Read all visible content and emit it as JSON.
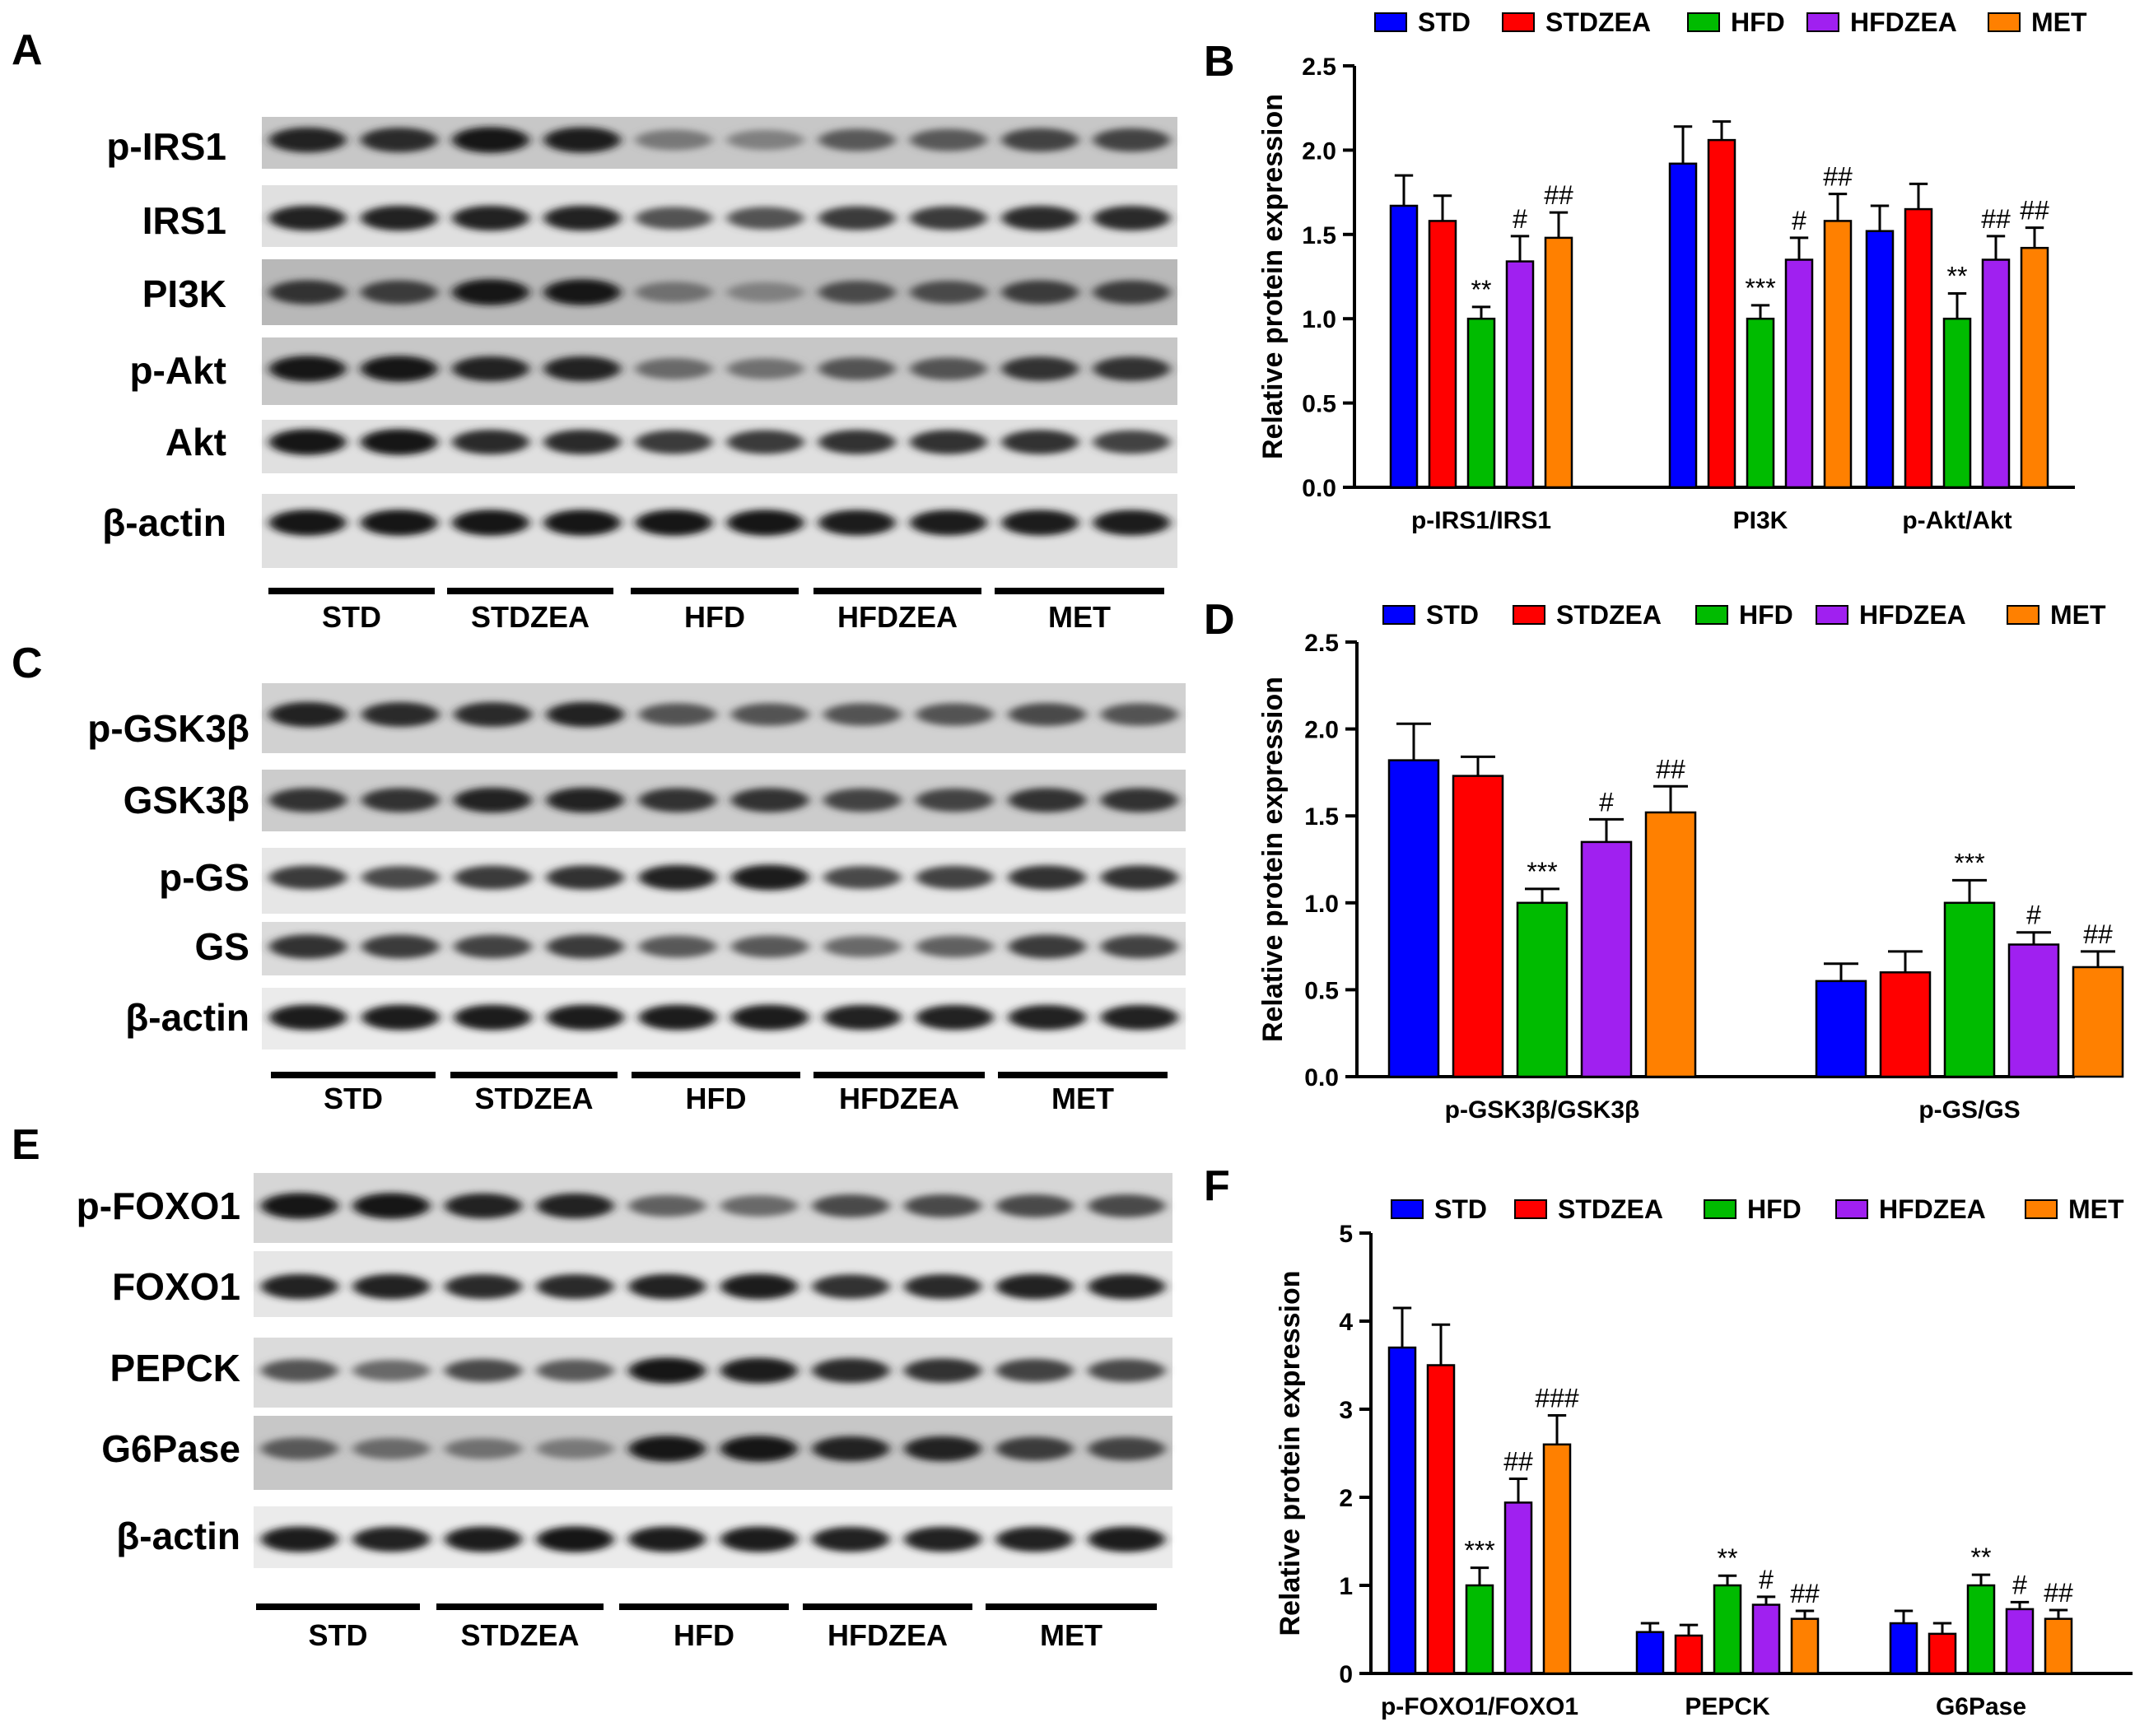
{
  "colors": {
    "STD": "#0000ff",
    "STDZEA": "#ff0000",
    "HFD": "#00bb00",
    "HFDZEA": "#a020f0",
    "MET": "#ff8000"
  },
  "groups": [
    "STD",
    "STDZEA",
    "HFD",
    "HFDZEA",
    "MET"
  ],
  "panels": {
    "A": {
      "letter": "A",
      "rows": [
        {
          "name": "p-IRS1",
          "bands": [
            0.85,
            0.8,
            0.95,
            0.9,
            0.3,
            0.25,
            0.5,
            0.5,
            0.65,
            0.65
          ],
          "bg": 0.78
        },
        {
          "name": "IRS1",
          "bands": [
            0.85,
            0.85,
            0.85,
            0.85,
            0.55,
            0.55,
            0.7,
            0.7,
            0.8,
            0.8
          ],
          "bg": 0.88
        },
        {
          "name": "PI3K",
          "bands": [
            0.75,
            0.7,
            0.95,
            0.95,
            0.35,
            0.25,
            0.6,
            0.6,
            0.7,
            0.7
          ],
          "bg": 0.72
        },
        {
          "name": "p-Akt",
          "bands": [
            0.95,
            0.95,
            0.85,
            0.85,
            0.4,
            0.35,
            0.55,
            0.55,
            0.75,
            0.75
          ],
          "bg": 0.78
        },
        {
          "name": "Akt",
          "bands": [
            0.95,
            0.95,
            0.8,
            0.8,
            0.7,
            0.7,
            0.75,
            0.75,
            0.75,
            0.65
          ],
          "bg": 0.88
        },
        {
          "name": "β-actin",
          "bands": [
            0.95,
            0.95,
            0.95,
            0.95,
            0.95,
            0.95,
            0.9,
            0.9,
            0.9,
            0.9
          ],
          "bg": 0.88
        }
      ]
    },
    "B": {
      "letter": "B",
      "ylabel": "Relative protein expression",
      "chart_data": {
        "type": "bar",
        "categories": [
          "p-IRS1/IRS1",
          "PI3K",
          "p-Akt/Akt"
        ],
        "ylim": [
          0,
          2.5
        ],
        "yticks": [
          "0.0",
          "0.5",
          "1.0",
          "1.5",
          "2.0",
          "2.5"
        ],
        "series": [
          {
            "name": "STD",
            "values": [
              1.67,
              1.92,
              1.52
            ],
            "errors": [
              0.18,
              0.22,
              0.15
            ]
          },
          {
            "name": "STDZEA",
            "values": [
              1.58,
              2.06,
              1.65
            ],
            "errors": [
              0.15,
              0.11,
              0.15
            ]
          },
          {
            "name": "HFD",
            "values": [
              1.0,
              1.0,
              1.0
            ],
            "errors": [
              0.07,
              0.08,
              0.15
            ]
          },
          {
            "name": "HFDZEA",
            "values": [
              1.34,
              1.35,
              1.35
            ],
            "errors": [
              0.15,
              0.13,
              0.14
            ]
          },
          {
            "name": "MET",
            "values": [
              1.48,
              1.58,
              1.42
            ],
            "errors": [
              0.15,
              0.16,
              0.12
            ]
          }
        ],
        "annotations": [
          {
            "cat": 0,
            "series": 2,
            "text": "**"
          },
          {
            "cat": 0,
            "series": 3,
            "text": "#"
          },
          {
            "cat": 0,
            "series": 4,
            "text": "##"
          },
          {
            "cat": 1,
            "series": 2,
            "text": "***"
          },
          {
            "cat": 1,
            "series": 3,
            "text": "#"
          },
          {
            "cat": 1,
            "series": 4,
            "text": "##"
          },
          {
            "cat": 2,
            "series": 2,
            "text": "**"
          },
          {
            "cat": 2,
            "series": 3,
            "text": "##"
          },
          {
            "cat": 2,
            "series": 4,
            "text": "##"
          }
        ]
      }
    },
    "C": {
      "letter": "C",
      "rows": [
        {
          "name": "p-GSK3β",
          "bands": [
            0.85,
            0.8,
            0.8,
            0.85,
            0.55,
            0.55,
            0.55,
            0.55,
            0.6,
            0.55
          ],
          "bg": 0.82
        },
        {
          "name": "GSK3β",
          "bands": [
            0.75,
            0.75,
            0.85,
            0.85,
            0.75,
            0.75,
            0.65,
            0.65,
            0.75,
            0.75
          ],
          "bg": 0.8
        },
        {
          "name": "p-GS",
          "bands": [
            0.7,
            0.6,
            0.7,
            0.75,
            0.85,
            0.9,
            0.6,
            0.65,
            0.75,
            0.75
          ],
          "bg": 0.9
        },
        {
          "name": "GS",
          "bands": [
            0.75,
            0.7,
            0.65,
            0.7,
            0.5,
            0.5,
            0.4,
            0.45,
            0.7,
            0.65
          ],
          "bg": 0.86
        },
        {
          "name": "β-actin",
          "bands": [
            0.9,
            0.9,
            0.9,
            0.9,
            0.9,
            0.9,
            0.85,
            0.85,
            0.85,
            0.85
          ],
          "bg": 0.92
        }
      ]
    },
    "D": {
      "letter": "D",
      "ylabel": "Relative protein expression",
      "chart_data": {
        "type": "bar",
        "categories": [
          "p-GSK3β/GSK3β",
          "p-GS/GS"
        ],
        "ylim": [
          0,
          2.5
        ],
        "yticks": [
          "0.0",
          "0.5",
          "1.0",
          "1.5",
          "2.0",
          "2.5"
        ],
        "series": [
          {
            "name": "STD",
            "values": [
              1.82,
              0.55
            ],
            "errors": [
              0.21,
              0.1
            ]
          },
          {
            "name": "STDZEA",
            "values": [
              1.73,
              0.6
            ],
            "errors": [
              0.11,
              0.12
            ]
          },
          {
            "name": "HFD",
            "values": [
              1.0,
              1.0
            ],
            "errors": [
              0.08,
              0.13
            ]
          },
          {
            "name": "HFDZEA",
            "values": [
              1.35,
              0.76
            ],
            "errors": [
              0.13,
              0.07
            ]
          },
          {
            "name": "MET",
            "values": [
              1.52,
              0.63
            ],
            "errors": [
              0.15,
              0.09
            ]
          }
        ],
        "annotations": [
          {
            "cat": 0,
            "series": 2,
            "text": "***"
          },
          {
            "cat": 0,
            "series": 3,
            "text": "#"
          },
          {
            "cat": 0,
            "series": 4,
            "text": "##"
          },
          {
            "cat": 1,
            "series": 2,
            "text": "***"
          },
          {
            "cat": 1,
            "series": 3,
            "text": "#"
          },
          {
            "cat": 1,
            "series": 4,
            "text": "##"
          }
        ]
      }
    },
    "E": {
      "letter": "E",
      "rows": [
        {
          "name": "p-FOXO1",
          "bands": [
            0.95,
            0.95,
            0.85,
            0.85,
            0.45,
            0.4,
            0.6,
            0.6,
            0.6,
            0.6
          ],
          "bg": 0.84
        },
        {
          "name": "FOXO1",
          "bands": [
            0.85,
            0.85,
            0.8,
            0.8,
            0.85,
            0.9,
            0.75,
            0.8,
            0.85,
            0.85
          ],
          "bg": 0.9
        },
        {
          "name": "PEPCK",
          "bands": [
            0.55,
            0.4,
            0.6,
            0.5,
            0.95,
            0.9,
            0.8,
            0.75,
            0.65,
            0.6
          ],
          "bg": 0.86
        },
        {
          "name": "G6Pase",
          "bands": [
            0.5,
            0.4,
            0.35,
            0.3,
            0.95,
            0.95,
            0.85,
            0.85,
            0.7,
            0.65
          ],
          "bg": 0.78
        },
        {
          "name": "β-actin",
          "bands": [
            0.9,
            0.85,
            0.9,
            0.95,
            0.9,
            0.9,
            0.85,
            0.85,
            0.85,
            0.9
          ],
          "bg": 0.92
        }
      ]
    },
    "F": {
      "letter": "F",
      "ylabel": "Relative protein expression",
      "chart_data": {
        "type": "bar",
        "categories": [
          "p-FOXO1/FOXO1",
          "PEPCK",
          "G6Pase"
        ],
        "ylim": [
          0,
          5
        ],
        "yticks": [
          "0",
          "1",
          "2",
          "3",
          "4",
          "5"
        ],
        "series": [
          {
            "name": "STD",
            "values": [
              3.7,
              0.47,
              0.57
            ],
            "errors": [
              0.45,
              0.1,
              0.14
            ]
          },
          {
            "name": "STDZEA",
            "values": [
              3.5,
              0.43,
              0.45
            ],
            "errors": [
              0.46,
              0.12,
              0.12
            ]
          },
          {
            "name": "HFD",
            "values": [
              1.0,
              1.0,
              1.0
            ],
            "errors": [
              0.2,
              0.11,
              0.12
            ]
          },
          {
            "name": "HFDZEA",
            "values": [
              1.94,
              0.78,
              0.73
            ],
            "errors": [
              0.27,
              0.09,
              0.08
            ]
          },
          {
            "name": "MET",
            "values": [
              2.6,
              0.62,
              0.62
            ],
            "errors": [
              0.33,
              0.09,
              0.1
            ]
          }
        ],
        "annotations": [
          {
            "cat": 0,
            "series": 2,
            "text": "***"
          },
          {
            "cat": 0,
            "series": 3,
            "text": "##"
          },
          {
            "cat": 0,
            "series": 4,
            "text": "###"
          },
          {
            "cat": 1,
            "series": 2,
            "text": "**"
          },
          {
            "cat": 1,
            "series": 3,
            "text": "#"
          },
          {
            "cat": 1,
            "series": 4,
            "text": "##"
          },
          {
            "cat": 2,
            "series": 2,
            "text": "**"
          },
          {
            "cat": 2,
            "series": 3,
            "text": "#"
          },
          {
            "cat": 2,
            "series": 4,
            "text": "##"
          }
        ]
      }
    }
  }
}
